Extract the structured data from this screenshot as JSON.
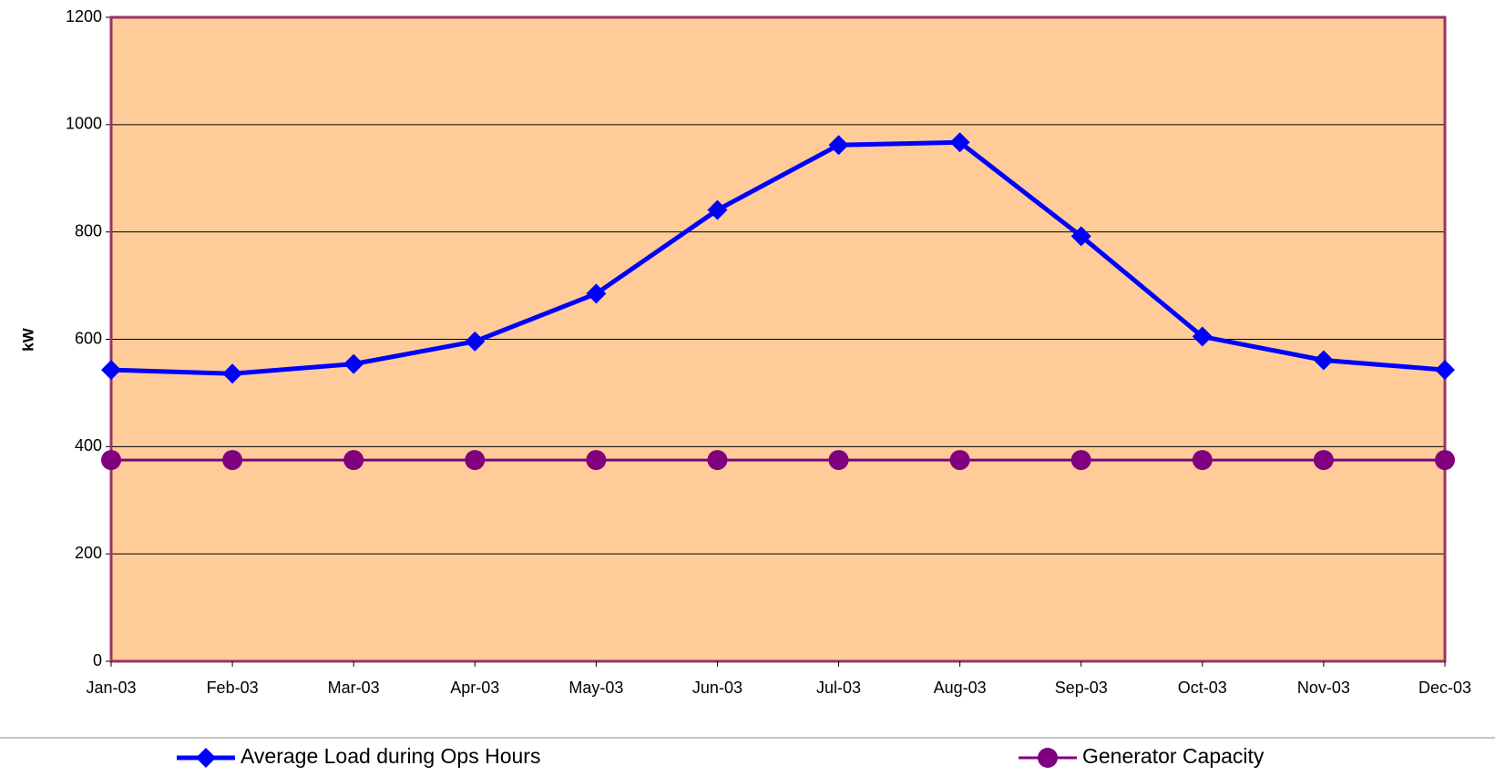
{
  "chart_data": {
    "type": "line",
    "y_label": "kW",
    "categories": [
      "Jan-03",
      "Feb-03",
      "Mar-03",
      "Apr-03",
      "May-03",
      "Jun-03",
      "Jul-03",
      "Aug-03",
      "Sep-03",
      "Oct-03",
      "Nov-03",
      "Dec-03"
    ],
    "series": [
      {
        "name": "Average Load during Ops Hours",
        "color": "#0000ff",
        "marker": "diamond",
        "values": [
          543,
          536,
          554,
          596,
          685,
          841,
          962,
          967,
          792,
          605,
          561,
          543
        ]
      },
      {
        "name": "Generator Capacity",
        "color": "#800080",
        "marker": "circle",
        "values": [
          375,
          375,
          375,
          375,
          375,
          375,
          375,
          375,
          375,
          375,
          375,
          375
        ]
      }
    ],
    "ylim": [
      0,
      1200
    ],
    "yticks": [
      0,
      200,
      400,
      600,
      800,
      1000,
      1200
    ],
    "grid": true,
    "plot_background": "#ffcc99",
    "plot_border": "#993366",
    "legend": "bottom"
  }
}
